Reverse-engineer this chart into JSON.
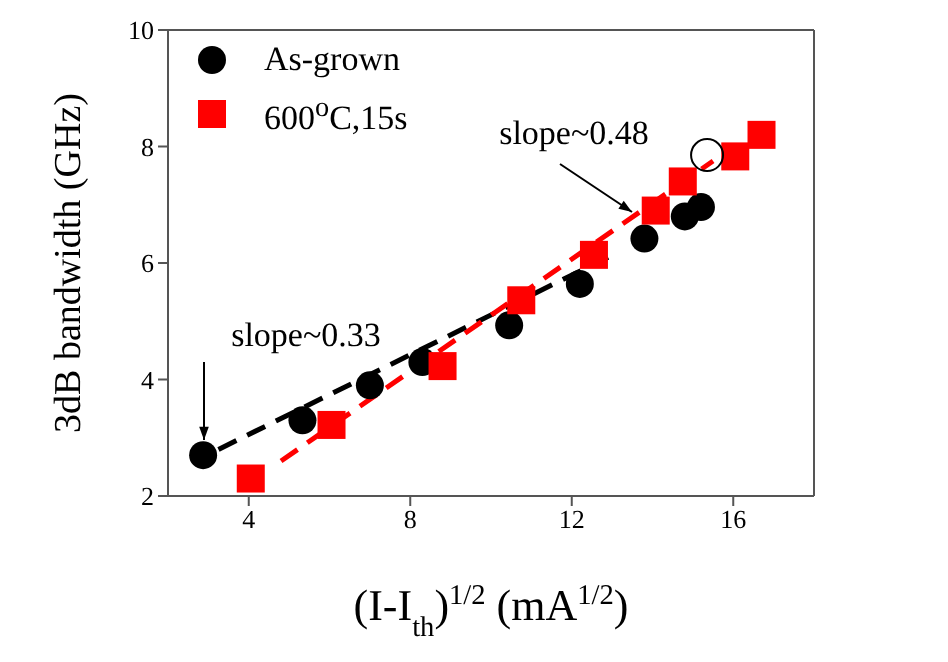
{
  "chart_data": {
    "type": "scatter",
    "xlabel": "(I-I$_{th}$)$^{1/2}$ (mA$^{1/2}$)",
    "ylabel": "3dB bandwidth (GHz)",
    "xlim": [
      2,
      18
    ],
    "ylim": [
      2,
      10
    ],
    "xticks": [
      4,
      8,
      12,
      16
    ],
    "yticks": [
      2,
      4,
      6,
      8,
      10
    ],
    "grid": false,
    "legend": "top left",
    "series": [
      {
        "name": "As-grown",
        "color": "#000000",
        "marker": "circle",
        "x": [
          2.87,
          5.33,
          7.0,
          8.3,
          10.45,
          12.2,
          13.8,
          14.8,
          15.2
        ],
        "values": [
          2.7,
          3.3,
          3.9,
          4.3,
          4.93,
          5.64,
          6.42,
          6.8,
          6.96
        ]
      },
      {
        "name": "600$^{o}$C,15s",
        "color": "#ff0000",
        "marker": "square",
        "x": [
          4.05,
          6.05,
          8.8,
          10.75,
          12.55,
          14.08,
          14.75,
          16.05,
          16.7
        ],
        "values": [
          2.3,
          3.22,
          4.23,
          5.36,
          6.14,
          6.9,
          7.4,
          7.83,
          8.2
        ]
      },
      {
        "type": "line",
        "color": "#000000",
        "line_style": "dashed",
        "marker": "none",
        "x": [
          3.25,
          12.9
        ],
        "values": [
          2.8,
          6.1
        ]
      },
      {
        "type": "line",
        "color": "#ff0000",
        "line_style": "dashed",
        "marker": "none",
        "x": [
          4.8,
          15.5
        ],
        "values": [
          2.6,
          7.75
        ]
      }
    ],
    "annotations": [
      "slope~0.33",
      "slope~0.48"
    ]
  }
}
